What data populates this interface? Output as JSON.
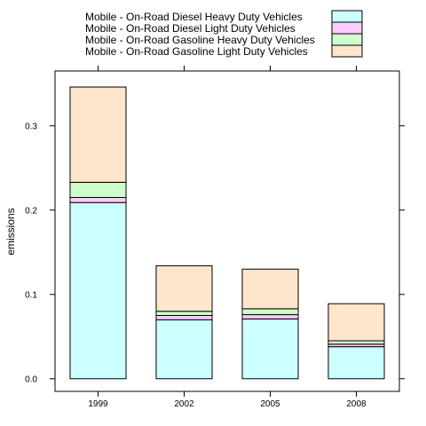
{
  "chart_data": {
    "type": "bar",
    "stacked": true,
    "categories": [
      "1999",
      "2002",
      "2005",
      "2008"
    ],
    "series": [
      {
        "name": "Mobile - On-Road Diesel Heavy Duty Vehicles",
        "color": "#ccffff",
        "values": [
          0.209,
          0.07,
          0.071,
          0.038
        ]
      },
      {
        "name": "Mobile - On-Road Diesel Light Duty Vehicles",
        "color": "#ffccff",
        "values": [
          0.006,
          0.005,
          0.005,
          0.003
        ]
      },
      {
        "name": "Mobile - On-Road Gasoline Heavy Duty Vehicles",
        "color": "#ccffcc",
        "values": [
          0.018,
          0.005,
          0.007,
          0.004
        ]
      },
      {
        "name": "Mobile - On-Road Gasoline Light Duty Vehicles",
        "color": "#ffe5cc",
        "values": [
          0.113,
          0.054,
          0.047,
          0.044
        ]
      }
    ],
    "ylabel": "emissions",
    "xlabel": "",
    "title": "",
    "ylim": [
      -0.015,
      0.365
    ],
    "yticks": [
      "0.0",
      "0.1",
      "0.2",
      "0.3"
    ],
    "legend_position": "top",
    "grid": false
  }
}
